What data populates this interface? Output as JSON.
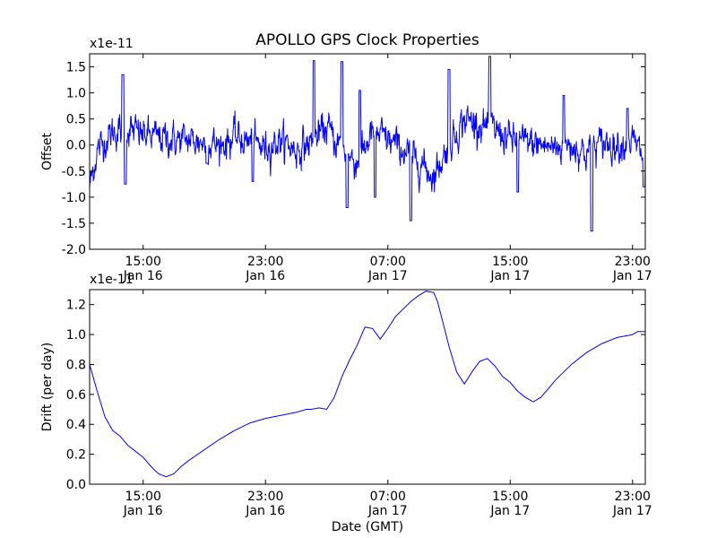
{
  "chart_data": [
    {
      "type": "line",
      "title": "APOLLO GPS Clock Properties",
      "xlabel": "",
      "ylabel": "Offset",
      "y_scale_label": "x1e-11",
      "ylim": [
        -2.0,
        1.75
      ],
      "y_ticks": [
        -2.0,
        -1.5,
        -1.0,
        -0.5,
        0.0,
        0.5,
        1.0,
        1.5
      ],
      "y_tick_labels": [
        "-2.0",
        "-1.5",
        "-1.0",
        "-0.5",
        "0.0",
        "0.5",
        "1.0",
        "1.5"
      ],
      "xlim": [
        "2013-01-16T11:30",
        "2013-01-17T23:50"
      ],
      "x_ticks": [
        "2013-01-16T15:00",
        "2013-01-16T23:00",
        "2013-01-17T07:00",
        "2013-01-17T15:00",
        "2013-01-17T23:00"
      ],
      "x_tick_labels": [
        [
          "15:00",
          "Jan 16"
        ],
        [
          "23:00",
          "Jan 16"
        ],
        [
          "07:00",
          "Jan 17"
        ],
        [
          "15:00",
          "Jan 17"
        ],
        [
          "23:00",
          "Jan 17"
        ]
      ],
      "grid": false,
      "color": "#0000ff",
      "trend": {
        "x": [
          "2013-01-16T11:30",
          "2013-01-16T12:00",
          "2013-01-16T13:00",
          "2013-01-16T14:00",
          "2013-01-16T15:00",
          "2013-01-16T16:00",
          "2013-01-16T17:00",
          "2013-01-16T18:00",
          "2013-01-16T19:00",
          "2013-01-16T20:00",
          "2013-01-16T21:00",
          "2013-01-16T22:00",
          "2013-01-16T23:00",
          "2013-01-17T00:00",
          "2013-01-17T01:00",
          "2013-01-17T02:00",
          "2013-01-17T03:00",
          "2013-01-17T04:00",
          "2013-01-17T05:00",
          "2013-01-17T06:00",
          "2013-01-17T07:00",
          "2013-01-17T08:00",
          "2013-01-17T09:00",
          "2013-01-17T10:00",
          "2013-01-17T11:00",
          "2013-01-17T12:00",
          "2013-01-17T13:00",
          "2013-01-17T14:00",
          "2013-01-17T15:00",
          "2013-01-17T16:00",
          "2013-01-17T17:00",
          "2013-01-17T18:00",
          "2013-01-17T19:00",
          "2013-01-17T20:00",
          "2013-01-17T21:00",
          "2013-01-17T22:00",
          "2013-01-17T23:00",
          "2013-01-17T23:50"
        ],
        "y": [
          -0.8,
          -0.1,
          0.25,
          0.3,
          0.2,
          0.15,
          0.1,
          0.1,
          0.05,
          0.0,
          0.15,
          0.05,
          -0.05,
          0.1,
          -0.1,
          0.05,
          0.35,
          -0.1,
          -0.35,
          0.25,
          0.1,
          -0.1,
          -0.3,
          -0.6,
          0.0,
          0.5,
          0.4,
          0.3,
          0.1,
          0.05,
          0.0,
          -0.05,
          0.0,
          -0.15,
          0.05,
          0.0,
          0.1,
          -0.3
        ]
      },
      "extremes": [
        {
          "x": "2013-01-16T13:40",
          "y": 1.35
        },
        {
          "x": "2013-01-16T13:50",
          "y": -0.75
        },
        {
          "x": "2013-01-16T19:10",
          "y": -0.35
        },
        {
          "x": "2013-01-16T22:10",
          "y": -0.7
        },
        {
          "x": "2013-01-17T02:10",
          "y": 1.62
        },
        {
          "x": "2013-01-17T04:00",
          "y": 1.6
        },
        {
          "x": "2013-01-17T04:20",
          "y": -1.2
        },
        {
          "x": "2013-01-17T05:10",
          "y": 1.05
        },
        {
          "x": "2013-01-17T06:10",
          "y": -1.0
        },
        {
          "x": "2013-01-17T08:30",
          "y": -1.45
        },
        {
          "x": "2013-01-17T11:00",
          "y": 1.45
        },
        {
          "x": "2013-01-17T13:40",
          "y": 1.7
        },
        {
          "x": "2013-01-17T15:30",
          "y": -0.9
        },
        {
          "x": "2013-01-17T18:30",
          "y": 0.95
        },
        {
          "x": "2013-01-17T20:20",
          "y": -1.65
        },
        {
          "x": "2013-01-17T22:40",
          "y": 0.7
        },
        {
          "x": "2013-01-17T23:45",
          "y": -0.8
        }
      ]
    },
    {
      "type": "line",
      "title": "",
      "xlabel": "Date (GMT)",
      "ylabel": "Drift (per day)",
      "y_scale_label": "x1e-11",
      "ylim": [
        0.0,
        1.3
      ],
      "y_ticks": [
        0.0,
        0.2,
        0.4,
        0.6,
        0.8,
        1.0,
        1.2
      ],
      "y_tick_labels": [
        "0.0",
        "0.2",
        "0.4",
        "0.6",
        "0.8",
        "1.0",
        "1.2"
      ],
      "xlim": [
        "2013-01-16T11:30",
        "2013-01-17T23:50"
      ],
      "x_ticks": [
        "2013-01-16T15:00",
        "2013-01-16T23:00",
        "2013-01-17T07:00",
        "2013-01-17T15:00",
        "2013-01-17T23:00"
      ],
      "x_tick_labels": [
        [
          "15:00",
          "Jan 16"
        ],
        [
          "23:00",
          "Jan 16"
        ],
        [
          "07:00",
          "Jan 17"
        ],
        [
          "15:00",
          "Jan 17"
        ],
        [
          "23:00",
          "Jan 17"
        ]
      ],
      "grid": false,
      "color": "#0000ff",
      "x": [
        "2013-01-16T11:30",
        "2013-01-16T12:00",
        "2013-01-16T12:30",
        "2013-01-16T13:00",
        "2013-01-16T13:30",
        "2013-01-16T14:00",
        "2013-01-16T14:30",
        "2013-01-16T15:00",
        "2013-01-16T15:30",
        "2013-01-16T16:00",
        "2013-01-16T16:30",
        "2013-01-16T17:00",
        "2013-01-16T17:30",
        "2013-01-16T18:00",
        "2013-01-16T19:00",
        "2013-01-16T20:00",
        "2013-01-16T21:00",
        "2013-01-16T22:00",
        "2013-01-16T23:00",
        "2013-01-17T00:00",
        "2013-01-17T01:00",
        "2013-01-17T01:40",
        "2013-01-17T02:00",
        "2013-01-17T02:30",
        "2013-01-17T03:00",
        "2013-01-17T03:30",
        "2013-01-17T04:00",
        "2013-01-17T04:30",
        "2013-01-17T05:00",
        "2013-01-17T05:30",
        "2013-01-17T06:00",
        "2013-01-17T06:30",
        "2013-01-17T07:00",
        "2013-01-17T07:30",
        "2013-01-17T08:00",
        "2013-01-17T08:30",
        "2013-01-17T09:00",
        "2013-01-17T09:30",
        "2013-01-17T10:00",
        "2013-01-17T10:15",
        "2013-01-17T10:30",
        "2013-01-17T11:00",
        "2013-01-17T11:30",
        "2013-01-17T12:00",
        "2013-01-17T12:30",
        "2013-01-17T13:00",
        "2013-01-17T13:30",
        "2013-01-17T14:00",
        "2013-01-17T14:30",
        "2013-01-17T15:00",
        "2013-01-17T15:30",
        "2013-01-17T16:00",
        "2013-01-17T16:30",
        "2013-01-17T17:00",
        "2013-01-17T18:00",
        "2013-01-17T19:00",
        "2013-01-17T20:00",
        "2013-01-17T21:00",
        "2013-01-17T22:00",
        "2013-01-17T23:00",
        "2013-01-17T23:20",
        "2013-01-17T23:50"
      ],
      "y": [
        0.8,
        0.62,
        0.45,
        0.36,
        0.32,
        0.26,
        0.22,
        0.18,
        0.12,
        0.07,
        0.05,
        0.07,
        0.12,
        0.16,
        0.23,
        0.3,
        0.36,
        0.41,
        0.44,
        0.46,
        0.48,
        0.5,
        0.5,
        0.51,
        0.5,
        0.58,
        0.72,
        0.83,
        0.93,
        1.05,
        1.04,
        0.97,
        1.04,
        1.12,
        1.17,
        1.22,
        1.26,
        1.29,
        1.28,
        1.22,
        1.12,
        0.92,
        0.75,
        0.67,
        0.75,
        0.82,
        0.84,
        0.79,
        0.72,
        0.68,
        0.62,
        0.58,
        0.55,
        0.58,
        0.7,
        0.8,
        0.88,
        0.94,
        0.98,
        1.0,
        1.02,
        1.02
      ]
    }
  ]
}
